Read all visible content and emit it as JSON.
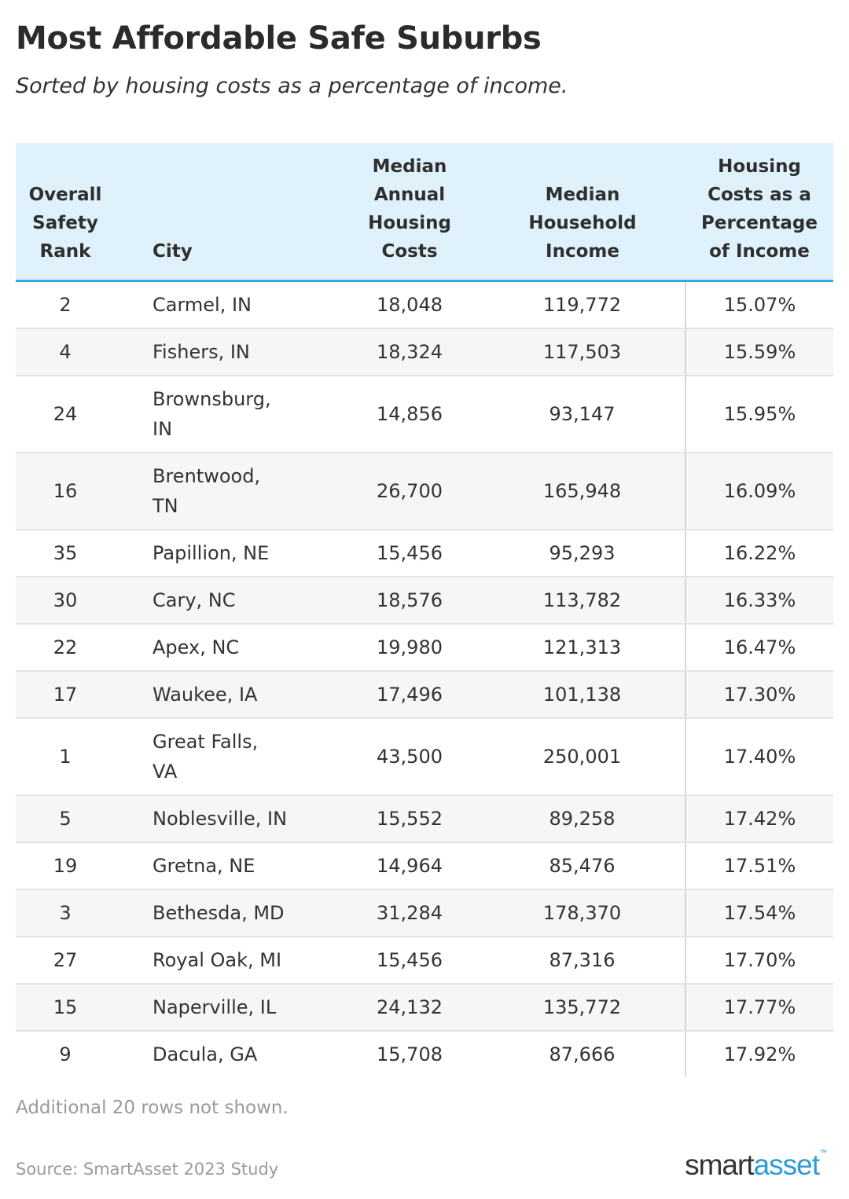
{
  "title": "Most Affordable Safe Suburbs",
  "subtitle": "Sorted by housing costs as a percentage of income.",
  "table": {
    "headers": {
      "rank": [
        "Overall",
        "Safety",
        "Rank"
      ],
      "city": [
        "City"
      ],
      "housing": [
        "Median",
        "Annual",
        "Housing",
        "Costs"
      ],
      "income": [
        "Median",
        "Household",
        "Income"
      ],
      "pct": [
        "Housing",
        "Costs as a",
        "Percentage",
        "of Income"
      ]
    },
    "rows": [
      {
        "rank": "2",
        "city": [
          "Carmel, IN"
        ],
        "housing": "18,048",
        "income": "119,772",
        "pct": "15.07%"
      },
      {
        "rank": "4",
        "city": [
          "Fishers, IN"
        ],
        "housing": "18,324",
        "income": "117,503",
        "pct": "15.59%"
      },
      {
        "rank": "24",
        "city": [
          "Brownsburg,",
          "IN"
        ],
        "housing": "14,856",
        "income": "93,147",
        "pct": "15.95%"
      },
      {
        "rank": "16",
        "city": [
          "Brentwood,",
          "TN"
        ],
        "housing": "26,700",
        "income": "165,948",
        "pct": "16.09%"
      },
      {
        "rank": "35",
        "city": [
          "Papillion, NE"
        ],
        "housing": "15,456",
        "income": "95,293",
        "pct": "16.22%"
      },
      {
        "rank": "30",
        "city": [
          "Cary, NC"
        ],
        "housing": "18,576",
        "income": "113,782",
        "pct": "16.33%"
      },
      {
        "rank": "22",
        "city": [
          "Apex, NC"
        ],
        "housing": "19,980",
        "income": "121,313",
        "pct": "16.47%"
      },
      {
        "rank": "17",
        "city": [
          "Waukee, IA"
        ],
        "housing": "17,496",
        "income": "101,138",
        "pct": "17.30%"
      },
      {
        "rank": "1",
        "city": [
          "Great Falls,",
          "VA"
        ],
        "housing": "43,500",
        "income": "250,001",
        "pct": "17.40%"
      },
      {
        "rank": "5",
        "city": [
          "Noblesville, IN"
        ],
        "housing": "15,552",
        "income": "89,258",
        "pct": "17.42%"
      },
      {
        "rank": "19",
        "city": [
          "Gretna, NE"
        ],
        "housing": "14,964",
        "income": "85,476",
        "pct": "17.51%"
      },
      {
        "rank": "3",
        "city": [
          "Bethesda, MD"
        ],
        "housing": "31,284",
        "income": "178,370",
        "pct": "17.54%"
      },
      {
        "rank": "27",
        "city": [
          "Royal Oak, MI"
        ],
        "housing": "15,456",
        "income": "87,316",
        "pct": "17.70%"
      },
      {
        "rank": "15",
        "city": [
          "Naperville, IL"
        ],
        "housing": "24,132",
        "income": "135,772",
        "pct": "17.77%"
      },
      {
        "rank": "9",
        "city": [
          "Dacula, GA"
        ],
        "housing": "15,708",
        "income": "87,666",
        "pct": "17.92%"
      }
    ]
  },
  "chart_data": {
    "type": "table",
    "title": "Most Affordable Safe Suburbs",
    "subtitle": "Sorted by housing costs as a percentage of income.",
    "columns": [
      "Overall Safety Rank",
      "City",
      "Median Annual Housing Costs",
      "Median Household Income",
      "Housing Costs as a Percentage of Income"
    ],
    "rows": [
      [
        2,
        "Carmel, IN",
        18048,
        119772,
        15.07
      ],
      [
        4,
        "Fishers, IN",
        18324,
        117503,
        15.59
      ],
      [
        24,
        "Brownsburg, IN",
        14856,
        93147,
        15.95
      ],
      [
        16,
        "Brentwood, TN",
        26700,
        165948,
        16.09
      ],
      [
        35,
        "Papillion, NE",
        15456,
        95293,
        16.22
      ],
      [
        30,
        "Cary, NC",
        18576,
        113782,
        16.33
      ],
      [
        22,
        "Apex, NC",
        19980,
        121313,
        16.47
      ],
      [
        17,
        "Waukee, IA",
        17496,
        101138,
        17.3
      ],
      [
        1,
        "Great Falls, VA",
        43500,
        250001,
        17.4
      ],
      [
        5,
        "Noblesville, IN",
        15552,
        89258,
        17.42
      ],
      [
        19,
        "Gretna, NE",
        14964,
        85476,
        17.51
      ],
      [
        3,
        "Bethesda, MD",
        31284,
        178370,
        17.54
      ],
      [
        27,
        "Royal Oak, MI",
        15456,
        87316,
        17.7
      ],
      [
        15,
        "Naperville, IL",
        24132,
        135772,
        17.77
      ],
      [
        9,
        "Dacula, GA",
        15708,
        87666,
        17.92
      ]
    ]
  },
  "footer": {
    "note": "Additional 20 rows not shown.",
    "source": "Source: SmartAsset 2023 Study",
    "logo_smart": "smart",
    "logo_asset": "asset",
    "logo_tm": "™"
  },
  "colors": {
    "header_bg": "#dff1fb",
    "header_rule": "#3aa6e0",
    "stripe": "#f6f6f6",
    "brand_blue": "#2e9bd6"
  }
}
